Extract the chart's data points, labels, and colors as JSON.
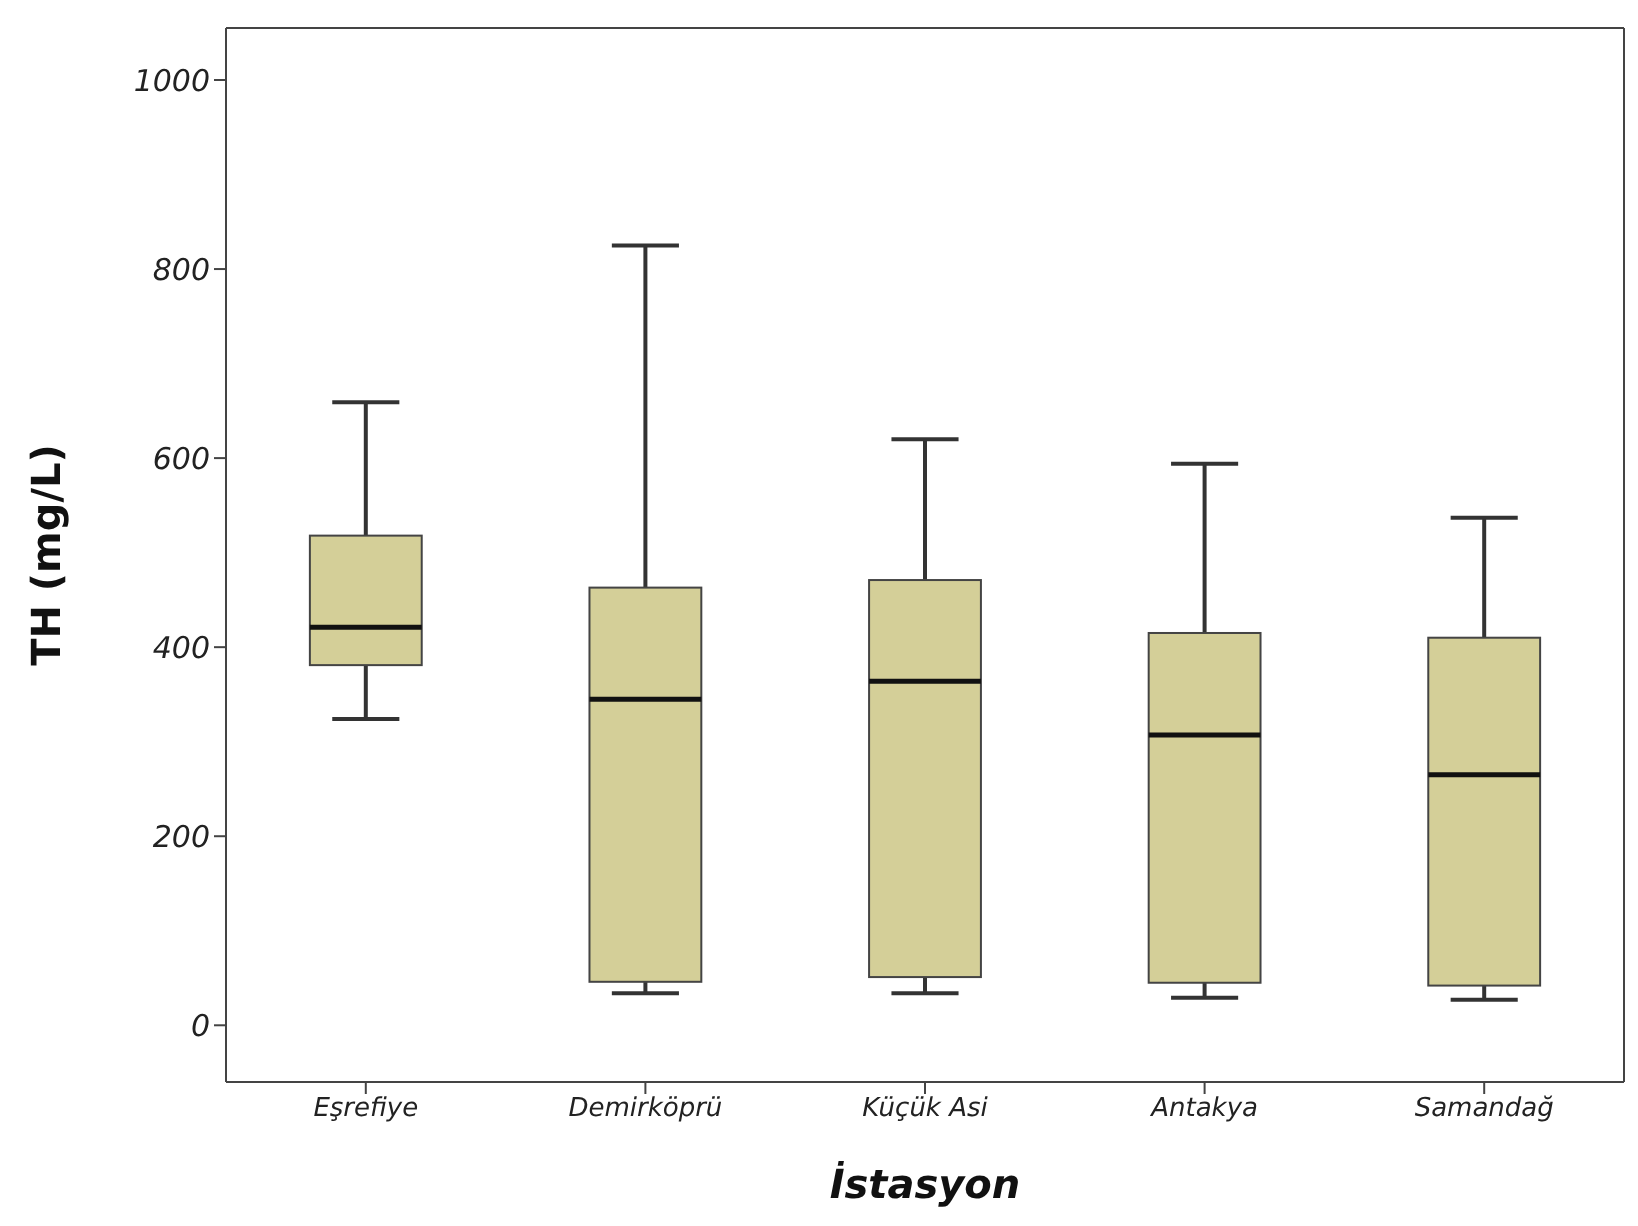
{
  "chart_data": {
    "type": "box",
    "xlabel": "İstasyon",
    "ylabel": "TH (mg/L)",
    "categories": [
      "Eşrefiye",
      "Demirköprü",
      "Küçük Asi",
      "Antakya",
      "Samandağ"
    ],
    "color": "#d4cf98",
    "boxes": [
      {
        "low": 324,
        "q1": 381,
        "median": 421,
        "q3": 518,
        "high": 659
      },
      {
        "low": 34,
        "q1": 46,
        "median": 345,
        "q3": 463,
        "high": 825
      },
      {
        "low": 34,
        "q1": 51,
        "median": 364,
        "q3": 471,
        "high": 620
      },
      {
        "low": 29,
        "q1": 45,
        "median": 307,
        "q3": 415,
        "high": 594
      },
      {
        "low": 27,
        "q1": 42,
        "median": 265,
        "q3": 410,
        "high": 537
      }
    ],
    "ylim": [
      -60,
      1055
    ],
    "yticks": [
      0,
      200,
      400,
      600,
      800,
      1000
    ],
    "grid": false
  }
}
